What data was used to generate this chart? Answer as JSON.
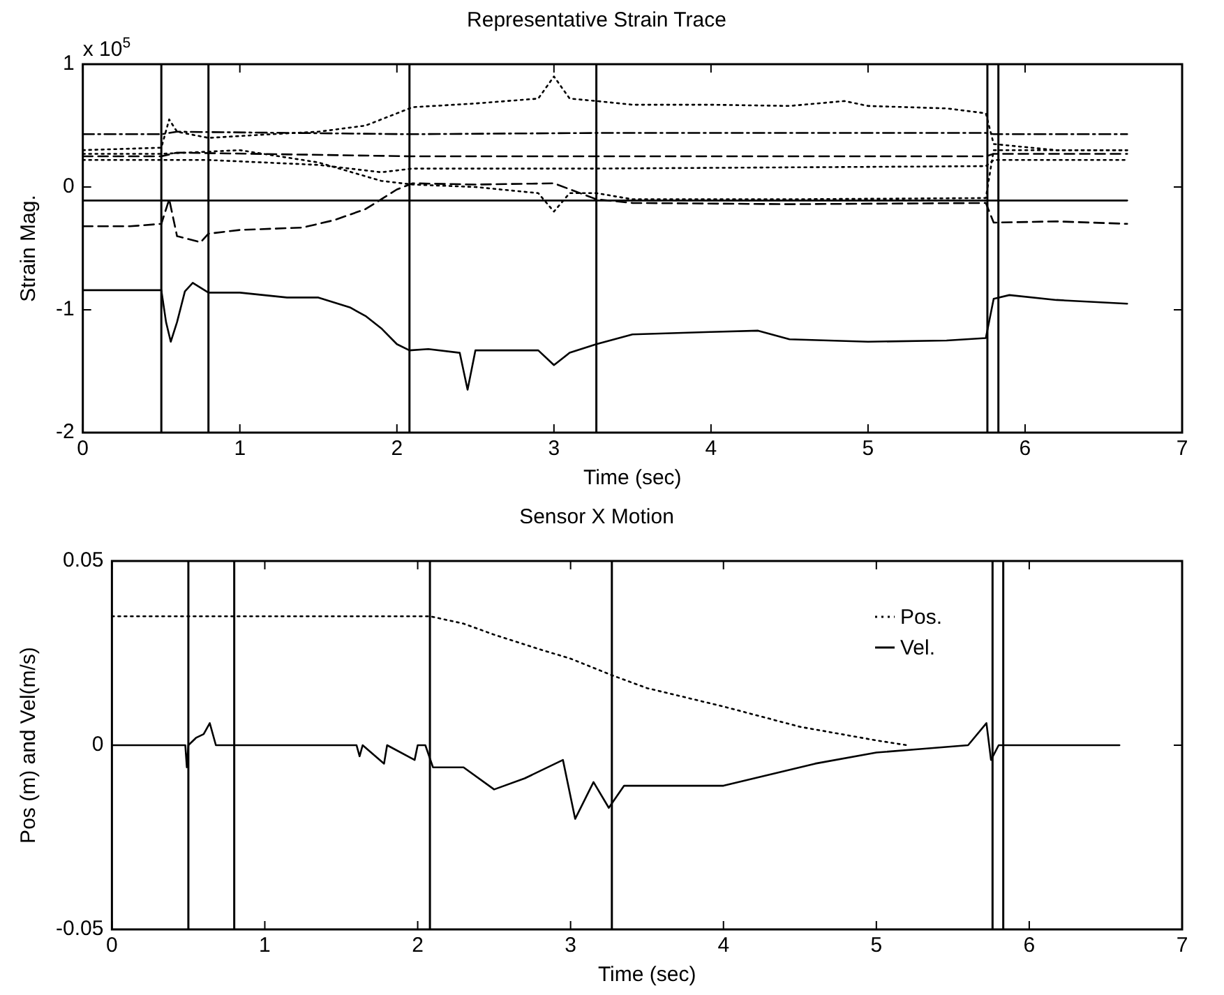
{
  "chart_data": [
    {
      "type": "line",
      "title": "Representative Strain Trace",
      "xlabel": "Time (sec)",
      "ylabel": "Strain Mag.",
      "annotations": [
        "x 10$^{5}$"
      ],
      "xlim": [
        0,
        7
      ],
      "ylim": [
        -2,
        1
      ],
      "xticks": [
        0,
        1,
        2,
        3,
        4,
        5,
        6,
        7
      ],
      "yticks": [
        -2,
        -1,
        0,
        1
      ],
      "grid": false,
      "legend": false,
      "marker": "none",
      "series": [
        {
          "color": "#000000",
          "line_style": "solid",
          "x": [
            0,
            0.3,
            0.5,
            0.53,
            0.56,
            0.6,
            0.65,
            0.7,
            0.8,
            1.0,
            1.3,
            1.5,
            1.7,
            1.8,
            1.9,
            2.0,
            2.08,
            2.2,
            2.4,
            2.45,
            2.5,
            2.7,
            2.9,
            3.0,
            3.1,
            3.27,
            3.5,
            4.0,
            4.3,
            4.5,
            5.0,
            5.5,
            5.75,
            5.8,
            5.9,
            6.2,
            6.65
          ],
          "values": [
            -0.84,
            -0.84,
            -0.84,
            -1.1,
            -1.26,
            -1.1,
            -0.85,
            -0.78,
            -0.86,
            -0.86,
            -0.9,
            -0.9,
            -0.98,
            -1.05,
            -1.15,
            -1.28,
            -1.33,
            -1.32,
            -1.35,
            -1.65,
            -1.33,
            -1.33,
            -1.33,
            -1.45,
            -1.35,
            -1.28,
            -1.2,
            -1.18,
            -1.17,
            -1.24,
            -1.26,
            -1.25,
            -1.23,
            -0.91,
            -0.88,
            -0.92,
            -0.95
          ]
        },
        {
          "color": "#000000",
          "line_style": "dashed",
          "x": [
            0,
            0.3,
            0.5,
            0.55,
            0.6,
            0.75,
            0.8,
            1.0,
            1.4,
            1.6,
            1.8,
            1.9,
            2.0,
            2.1,
            2.5,
            3.0,
            3.27,
            3.5,
            4.5,
            5.75,
            5.8,
            6.2,
            6.65
          ],
          "values": [
            -0.32,
            -0.32,
            -0.3,
            -0.1,
            -0.4,
            -0.45,
            -0.38,
            -0.35,
            -0.33,
            -0.27,
            -0.18,
            -0.1,
            -0.02,
            0.03,
            0.02,
            0.03,
            -0.1,
            -0.13,
            -0.14,
            -0.13,
            -0.29,
            -0.28,
            -0.3
          ]
        },
        {
          "color": "#000000",
          "line_style": "dotted",
          "x": [
            0,
            0.5,
            0.55,
            0.6,
            0.8,
            1.2,
            1.5,
            1.8,
            2.0,
            2.1,
            2.5,
            2.9,
            3.0,
            3.1,
            3.27,
            3.5,
            4.0,
            4.5,
            4.85,
            5.0,
            5.5,
            5.75,
            5.8,
            6.2,
            6.65
          ],
          "values": [
            0.3,
            0.32,
            0.55,
            0.45,
            0.4,
            0.43,
            0.45,
            0.5,
            0.6,
            0.65,
            0.68,
            0.72,
            0.9,
            0.72,
            0.7,
            0.67,
            0.67,
            0.66,
            0.7,
            0.66,
            0.64,
            0.6,
            0.35,
            0.3,
            0.3
          ]
        },
        {
          "color": "#000000",
          "line_style": "dashdot",
          "x": [
            0,
            0.5,
            0.6,
            2.08,
            3.27,
            5.75,
            5.8,
            6.65
          ],
          "values": [
            0.43,
            0.43,
            0.45,
            0.43,
            0.44,
            0.44,
            0.43,
            0.43
          ]
        },
        {
          "color": "#000000",
          "line_style": "dashed",
          "x": [
            0,
            0.5,
            0.6,
            2.08,
            3.27,
            5.75,
            5.8,
            6.65
          ],
          "values": [
            0.25,
            0.25,
            0.28,
            0.25,
            0.25,
            0.25,
            0.27,
            0.27
          ]
        },
        {
          "color": "#000000",
          "line_style": "dotted",
          "x": [
            0,
            0.5,
            0.8,
            1.5,
            1.9,
            2.1,
            3.27,
            4.5,
            5.75,
            5.8,
            6.65
          ],
          "values": [
            0.22,
            0.22,
            0.22,
            0.18,
            0.12,
            0.15,
            0.15,
            0.16,
            0.17,
            0.22,
            0.22
          ]
        },
        {
          "color": "#000000",
          "line_style": "dotted",
          "x": [
            0,
            0.5,
            1.0,
            1.5,
            1.9,
            2.1,
            2.5,
            2.9,
            3.0,
            3.1,
            3.27,
            3.5,
            4.5,
            5.75,
            5.8,
            6.65
          ],
          "values": [
            0.27,
            0.27,
            0.3,
            0.2,
            0.05,
            0.02,
            0.0,
            -0.05,
            -0.2,
            -0.05,
            -0.05,
            -0.1,
            -0.1,
            -0.09,
            0.3,
            0.3
          ]
        },
        {
          "color": "#000000",
          "line_style": "solid",
          "x": [
            0,
            6.65
          ],
          "values": [
            -0.11,
            -0.11
          ]
        }
      ],
      "ref_lines": [
        {
          "axis": "x",
          "value": 0.5,
          "color": "#000000"
        },
        {
          "axis": "x",
          "value": 0.8,
          "color": "#000000"
        },
        {
          "axis": "x",
          "value": 2.08,
          "color": "#000000"
        },
        {
          "axis": "x",
          "value": 3.27,
          "color": "#000000"
        },
        {
          "axis": "x",
          "value": 5.76,
          "color": "#000000"
        },
        {
          "axis": "x",
          "value": 5.83,
          "color": "#000000"
        }
      ]
    },
    {
      "type": "line",
      "title": "Sensor X Motion",
      "xlabel": "Time (sec)",
      "ylabel": "Pos (m) and Vel(m/s)",
      "xlim": [
        0,
        7
      ],
      "ylim": [
        -0.05,
        0.05
      ],
      "xticks": [
        0,
        1,
        2,
        3,
        4,
        5,
        6,
        7
      ],
      "yticks": [
        -0.05,
        0,
        0.05
      ],
      "grid": false,
      "legend": "top right",
      "marker": "none",
      "series": [
        {
          "name": "Pos.",
          "color": "#000000",
          "line_style": "dotted",
          "x": [
            0,
            0.5,
            1.0,
            2.08,
            2.3,
            2.5,
            2.8,
            3.0,
            3.27,
            3.5,
            4.0,
            4.5,
            5.0,
            5.2
          ],
          "values": [
            0.035,
            0.035,
            0.035,
            0.035,
            0.033,
            0.03,
            0.026,
            0.0235,
            0.019,
            0.0155,
            0.0105,
            0.005,
            0.0013,
            0
          ]
        },
        {
          "name": "Vel.",
          "color": "#000000",
          "line_style": "solid",
          "x": [
            0,
            0.48,
            0.49,
            0.5,
            0.55,
            0.6,
            0.64,
            0.68,
            1.6,
            1.62,
            1.64,
            1.78,
            1.8,
            1.98,
            2.0,
            2.05,
            2.1,
            2.3,
            2.5,
            2.7,
            2.95,
            3.03,
            3.15,
            3.25,
            3.35,
            3.6,
            4.0,
            4.3,
            4.6,
            5.0,
            5.3,
            5.6,
            5.72,
            5.75,
            5.8,
            6.59
          ],
          "values": [
            0,
            0,
            -0.006,
            0,
            0.002,
            0.003,
            0.006,
            0,
            0,
            -0.003,
            0,
            -0.005,
            0,
            -0.004,
            0,
            0,
            -0.006,
            -0.006,
            -0.012,
            -0.009,
            -0.004,
            -0.02,
            -0.01,
            -0.017,
            -0.011,
            -0.011,
            -0.011,
            -0.008,
            -0.005,
            -0.002,
            -0.001,
            0,
            0.006,
            -0.004,
            0,
            0
          ]
        }
      ],
      "ref_lines": [
        {
          "axis": "x",
          "value": 0.5,
          "color": "#000000"
        },
        {
          "axis": "x",
          "value": 0.8,
          "color": "#000000"
        },
        {
          "axis": "x",
          "value": 2.08,
          "color": "#000000"
        },
        {
          "axis": "x",
          "value": 3.27,
          "color": "#000000"
        },
        {
          "axis": "x",
          "value": 5.76,
          "color": "#000000"
        },
        {
          "axis": "x",
          "value": 5.83,
          "color": "#000000"
        }
      ]
    }
  ]
}
